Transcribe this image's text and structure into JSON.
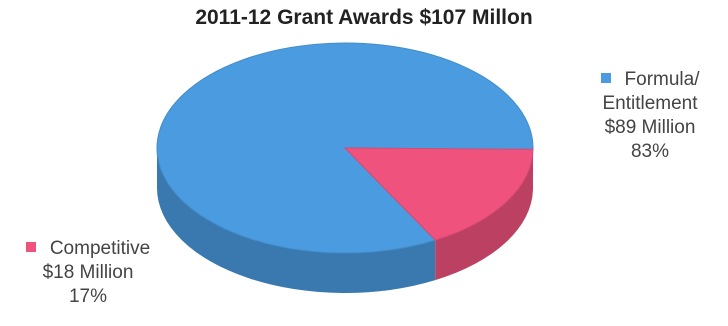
{
  "chart_data": {
    "type": "pie",
    "style": "3d",
    "title": "2011-12 Grant Awards $107 Millon",
    "slices": [
      {
        "name": "Formula/ Entitlement",
        "name_lines": [
          "Formula/",
          "Entitlement"
        ],
        "amount": "$89 Million",
        "value": 89,
        "percent": 83,
        "percent_label": "83%",
        "color": "#4a9be0"
      },
      {
        "name": "Competitive",
        "name_lines": [
          "Competitive"
        ],
        "amount": "$18 Million",
        "value": 18,
        "percent": 17,
        "percent_label": "17%",
        "color": "#f0527e"
      }
    ],
    "legend": "labels-beside-slices",
    "colors": {
      "text": "#444444",
      "title": "#222222"
    }
  }
}
